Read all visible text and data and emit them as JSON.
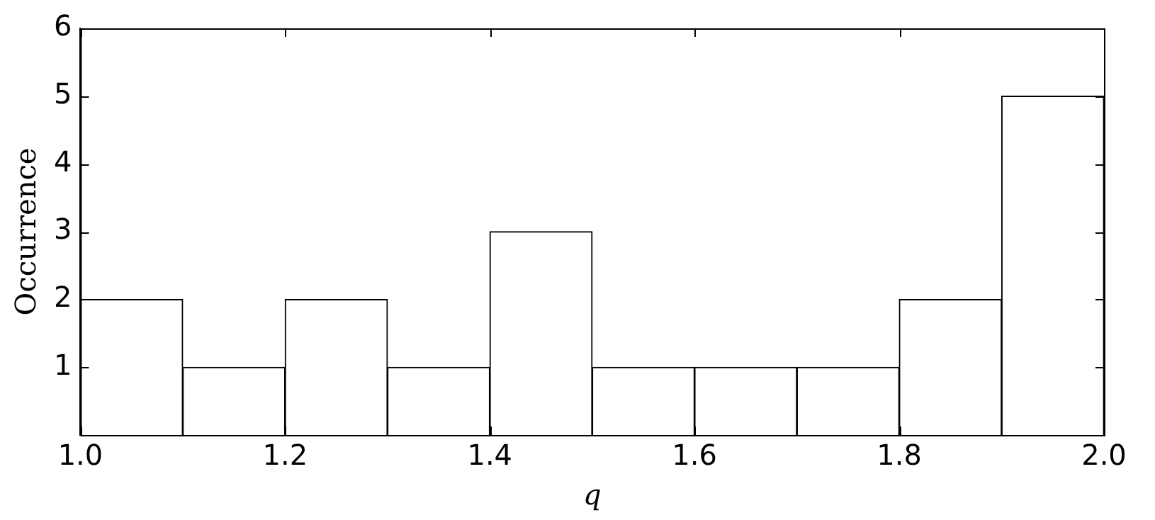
{
  "chart_data": {
    "type": "histogram",
    "xlabel": "q",
    "ylabel": "Occurrence",
    "bins": [
      1.0,
      1.1,
      1.2,
      1.3,
      1.4,
      1.5,
      1.6,
      1.7,
      1.8,
      1.9,
      2.0
    ],
    "values": [
      2,
      1,
      2,
      1,
      3,
      1,
      1,
      1,
      2,
      5
    ],
    "color": "#ffffff",
    "xlim": [
      1.0,
      2.0
    ],
    "xticks": [
      {
        "value": 1.0,
        "label": "1.0"
      },
      {
        "value": 1.2,
        "label": "1.2"
      },
      {
        "value": 1.4,
        "label": "1.4"
      },
      {
        "value": 1.6,
        "label": "1.6"
      },
      {
        "value": 1.8,
        "label": "1.8"
      },
      {
        "value": 2.0,
        "label": "2.0"
      }
    ],
    "ylim": [
      0,
      6
    ],
    "yticks": [
      1,
      2,
      3,
      4,
      5,
      6
    ],
    "grid": false,
    "legend": false
  }
}
